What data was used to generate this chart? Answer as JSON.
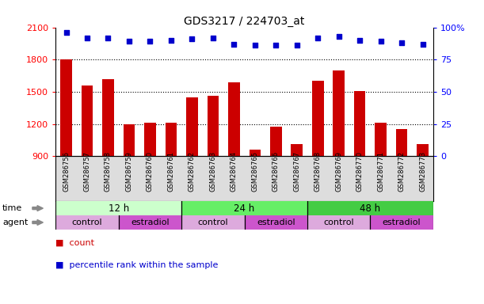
{
  "title": "GDS3217 / 224703_at",
  "samples": [
    "GSM286756",
    "GSM286757",
    "GSM286758",
    "GSM286759",
    "GSM286760",
    "GSM286761",
    "GSM286762",
    "GSM286763",
    "GSM286764",
    "GSM286765",
    "GSM286766",
    "GSM286767",
    "GSM286768",
    "GSM286769",
    "GSM286770",
    "GSM286771",
    "GSM286772",
    "GSM286773"
  ],
  "counts": [
    1800,
    1560,
    1620,
    1195,
    1210,
    1210,
    1450,
    1460,
    1590,
    960,
    1175,
    1010,
    1600,
    1700,
    1510,
    1210,
    1155,
    1010
  ],
  "percentiles": [
    96,
    92,
    92,
    89,
    89,
    90,
    91,
    92,
    87,
    86,
    86,
    86,
    92,
    93,
    90,
    89,
    88,
    87
  ],
  "ylim_left": [
    900,
    2100
  ],
  "ylim_right": [
    0,
    100
  ],
  "yticks_left": [
    900,
    1200,
    1500,
    1800,
    2100
  ],
  "yticks_right": [
    0,
    25,
    50,
    75,
    100
  ],
  "bar_color": "#cc0000",
  "dot_color": "#0000cc",
  "time_groups": [
    {
      "label": "12 h",
      "start": 0,
      "end": 6,
      "color": "#ccffcc"
    },
    {
      "label": "24 h",
      "start": 6,
      "end": 12,
      "color": "#66ee66"
    },
    {
      "label": "48 h",
      "start": 12,
      "end": 18,
      "color": "#44cc44"
    }
  ],
  "agent_groups": [
    {
      "label": "control",
      "start": 0,
      "end": 3,
      "color": "#ddaadd"
    },
    {
      "label": "estradiol",
      "start": 3,
      "end": 6,
      "color": "#cc55cc"
    },
    {
      "label": "control",
      "start": 6,
      "end": 9,
      "color": "#ddaadd"
    },
    {
      "label": "estradiol",
      "start": 9,
      "end": 12,
      "color": "#cc55cc"
    },
    {
      "label": "control",
      "start": 12,
      "end": 15,
      "color": "#ddaadd"
    },
    {
      "label": "estradiol",
      "start": 15,
      "end": 18,
      "color": "#cc55cc"
    }
  ],
  "sample_label_bg": "#dddddd",
  "legend_count_label": "count",
  "legend_pct_label": "percentile rank within the sample",
  "time_label": "time",
  "agent_label": "agent",
  "grid_lines": [
    1800,
    1500,
    1200
  ]
}
